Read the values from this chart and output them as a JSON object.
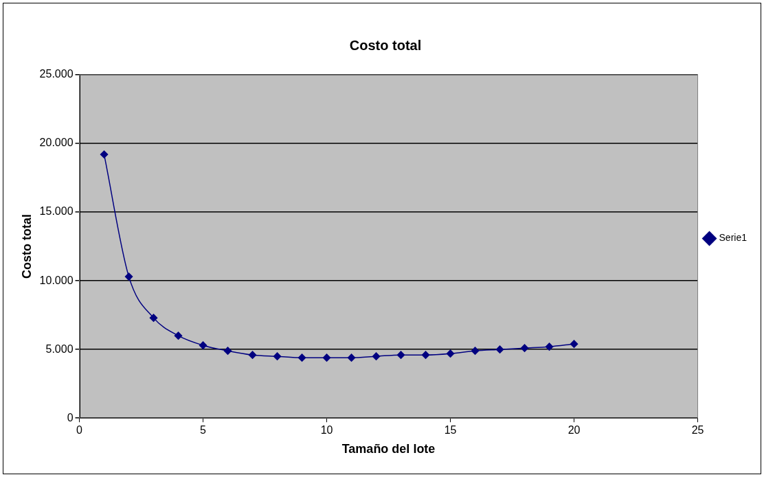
{
  "chart_data": {
    "type": "line",
    "title": "Costo total",
    "xlabel": "Tamaño del lote",
    "ylabel": "Costo total",
    "x": [
      1,
      2,
      3,
      4,
      5,
      6,
      7,
      8,
      9,
      10,
      11,
      12,
      13,
      14,
      15,
      16,
      17,
      18,
      19,
      20
    ],
    "series": [
      {
        "name": "Serie1",
        "color": "#000080",
        "values": [
          19200,
          10300,
          7300,
          6000,
          5300,
          4900,
          4600,
          4500,
          4400,
          4400,
          4400,
          4500,
          4600,
          4600,
          4700,
          4900,
          5000,
          5100,
          5200,
          5400
        ]
      }
    ],
    "xlim": [
      0,
      25
    ],
    "xticks": [
      0,
      5,
      10,
      15,
      20,
      25
    ],
    "ylim": [
      0,
      25000
    ],
    "yticks": [
      0,
      {
        "value": 5000,
        "label": "5.000"
      },
      {
        "value": 10000,
        "label": "10.000"
      },
      {
        "value": 15000,
        "label": "15.000"
      },
      {
        "value": 20000,
        "label": "20.000"
      },
      {
        "value": 25000,
        "label": "25.000"
      }
    ],
    "grid": "y",
    "legend": "right",
    "marker": "diamond",
    "line_style": "solid"
  }
}
